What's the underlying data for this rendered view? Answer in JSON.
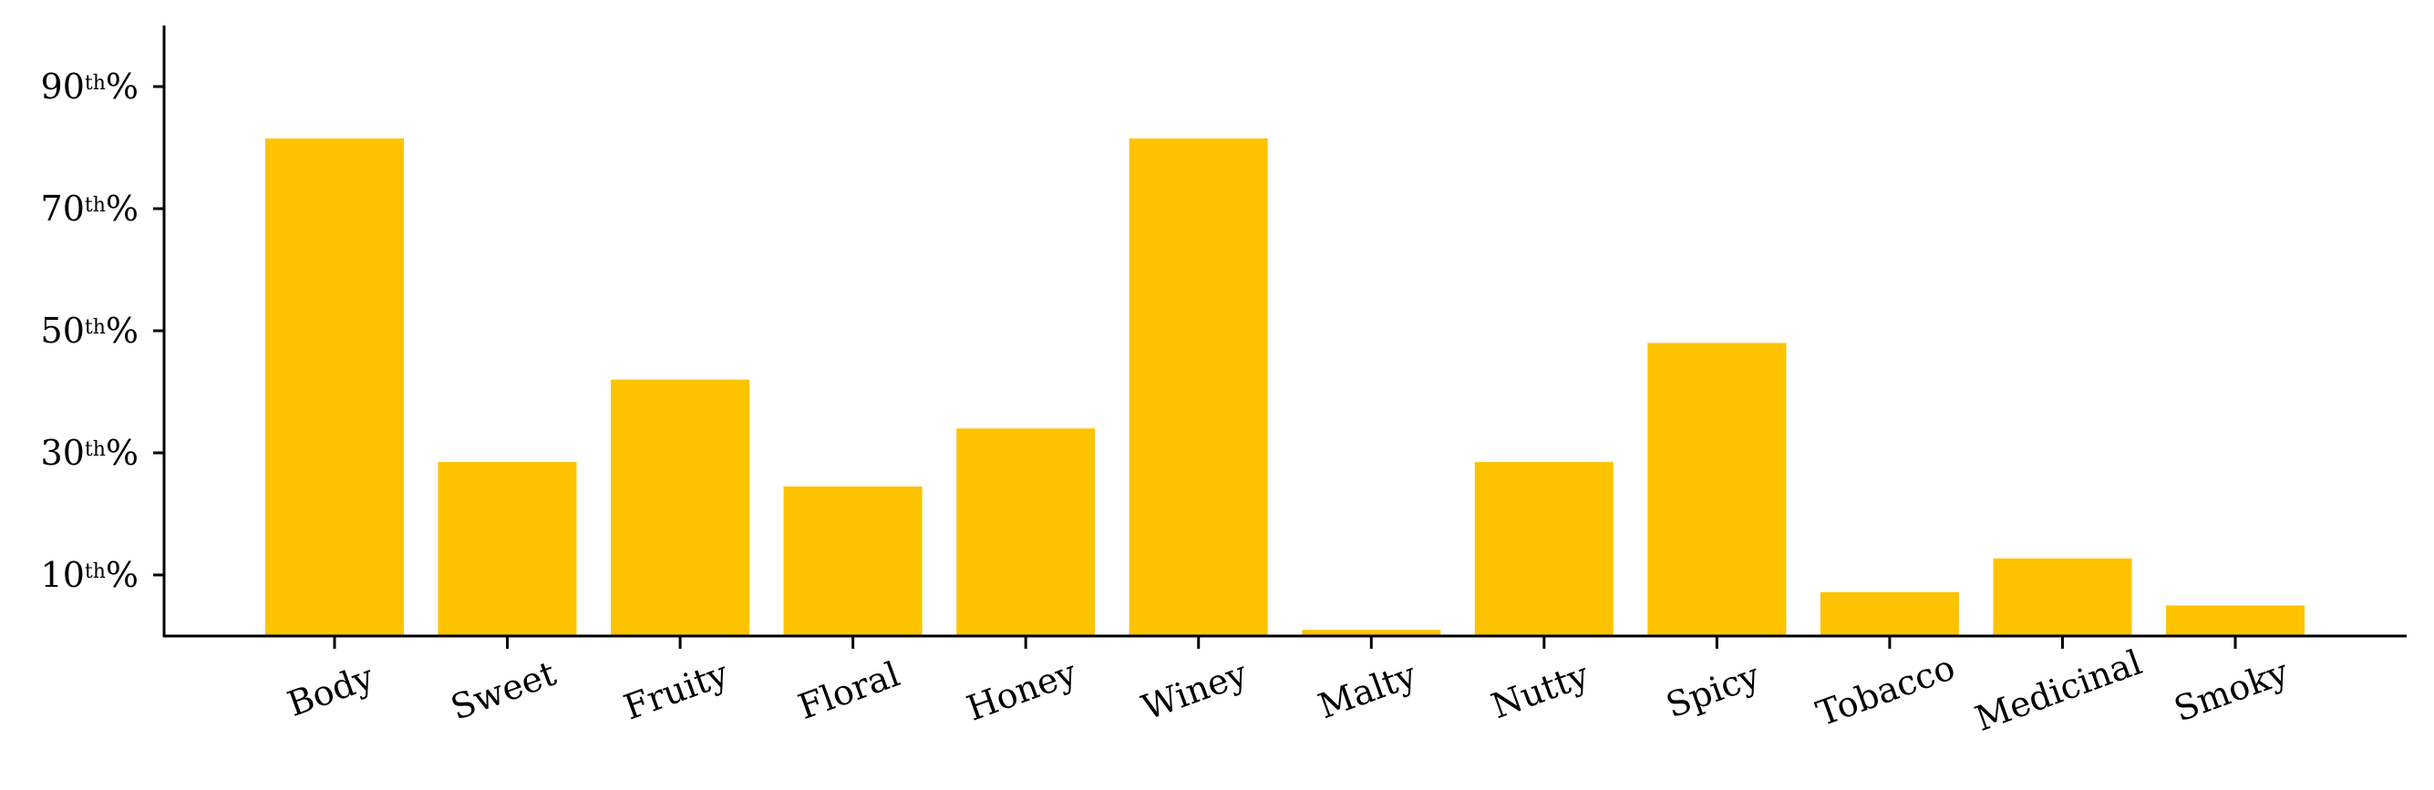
{
  "chart_data": {
    "type": "bar",
    "title": "",
    "xlabel": "",
    "ylabel": "",
    "categories": [
      "Body",
      "Sweet",
      "Fruity",
      "Floral",
      "Honey",
      "Winey",
      "Malty",
      "Nutty",
      "Spicy",
      "Tobacco",
      "Medicinal",
      "Smoky"
    ],
    "values": [
      81.5,
      28.5,
      42,
      24.5,
      34,
      81.5,
      1,
      28.5,
      48,
      7.2,
      12.7,
      5
    ],
    "ylim": [
      0,
      100
    ],
    "yticks": [
      {
        "value": 10,
        "num": "10",
        "sup": "th",
        "suffix": "%"
      },
      {
        "value": 30,
        "num": "30",
        "sup": "th",
        "suffix": "%"
      },
      {
        "value": 50,
        "num": "50",
        "sup": "th",
        "suffix": "%"
      },
      {
        "value": 70,
        "num": "70",
        "sup": "th",
        "suffix": "%"
      },
      {
        "value": 90,
        "num": "90",
        "sup": "th",
        "suffix": "%"
      }
    ],
    "bar_color": "#FDC300",
    "axis_color": "#000000",
    "grid": false,
    "legend": "none"
  }
}
